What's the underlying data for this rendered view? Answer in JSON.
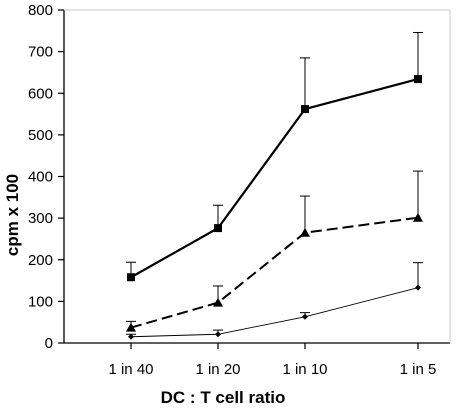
{
  "chart_data": {
    "type": "line",
    "title": "",
    "xlabel": "DC : T cell ratio",
    "ylabel": "cpm x 100",
    "categories": [
      "1 in 40",
      "1 in 20",
      "1 in 10",
      "1 in 5"
    ],
    "ylim": [
      0,
      800
    ],
    "yticks": [
      0,
      100,
      200,
      300,
      400,
      500,
      600,
      700,
      800
    ],
    "grid": false,
    "legend": "none",
    "series": [
      {
        "values": [
          158,
          276,
          562,
          634
        ],
        "error": [
          36,
          55,
          123,
          112
        ],
        "marker": "square",
        "line_style": "solid",
        "color": "#000000"
      },
      {
        "values": [
          37,
          97,
          265,
          301
        ],
        "error": [
          15,
          40,
          88,
          112
        ],
        "marker": "triangle",
        "line_style": "dashed",
        "color": "#000000"
      },
      {
        "values": [
          15,
          21,
          63,
          133
        ],
        "error": [
          6,
          10,
          10,
          60
        ],
        "marker": "diamond",
        "line_style": "thin",
        "color": "#000000"
      }
    ]
  }
}
